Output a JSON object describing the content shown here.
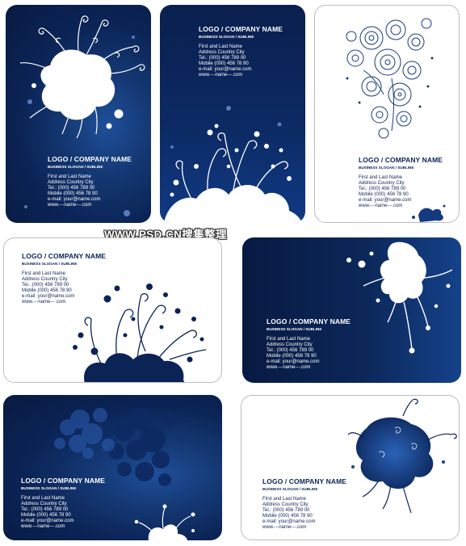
{
  "watermark": "WWW.PSD.CN搜集整理",
  "cards": [
    {
      "company": "LOGO / COMPANY NAME",
      "slogan": "BUSINESS SLOGAN / SUBLINE",
      "lines": [
        "First and Last Name",
        "Address Country City",
        "Tel.:  (000) 456 789 00",
        "Mobile (000) 456 78 90",
        "e-mail: your@name.com",
        "www.---name---.com"
      ]
    },
    {
      "company": "LOGO / COMPANY NAME",
      "slogan": "BUSINESS SLOGAN / SUBLINE",
      "lines": [
        "First and Last Name",
        "Address Country City",
        "Tel.:  (000) 456 789 00",
        "Mobile (000) 456 78 90",
        "e-mail: your@name.com",
        "www.---name---.com"
      ]
    },
    {
      "company": "LOGO / COMPANY NAME",
      "slogan": "BUSINESS SLOGAN / SUBLINE",
      "lines": [
        "First and Last Name",
        "Address Country City",
        "Tel.:  (000) 456 789 00",
        "Mobile (000) 456 78 90",
        "e-mail: your@name.com",
        "www.---name---.com"
      ]
    },
    {
      "company": "LOGO / COMPANY NAME",
      "slogan": "BUSINESS SLOGAN / SUBLINE",
      "lines": [
        "First and Last Name",
        "Address Country City",
        "Tel.:  (000) 456 789 00",
        "Mobile (000) 456 78 90",
        "e-mail: your@name.com",
        "www.---name---.com"
      ]
    },
    {
      "company": "LOGO / COMPANY NAME",
      "slogan": "BUSINESS SLOGAN / SUBLINE",
      "lines": [
        "First and Last Name",
        "Address Country City",
        "Tel.:  (000) 456 789 00",
        "Mobile (000) 456 78 90",
        "e-mail: your@name.com",
        "www.---name---.com"
      ]
    },
    {
      "company": "LOGO / COMPANY NAME",
      "slogan": "BUSINESS SLOGAN / SUBLINE",
      "lines": [
        "First and Last Name",
        "Address Country City",
        "Tel.:  (000) 456 789 00",
        "Mobile (000) 456 78 90",
        "e-mail: your@name.com",
        "www.---name---.com"
      ]
    },
    {
      "company": "LOGO / COMPANY NAME",
      "slogan": "BUSINESS SLOGAN / SUBLINE",
      "lines": [
        "First and Last Name",
        "Address Country City",
        "Tel.:  (000) 456 789 00",
        "Mobile (000) 456 78 90",
        "e-mail: your@name.com",
        "www.---name---.com"
      ]
    }
  ],
  "colors": {
    "navy": "#0b2456",
    "deep_navy": "#071a40",
    "accent_blue": "#1f4f9a",
    "white": "#ffffff",
    "card_border": "#b9bcc2"
  }
}
